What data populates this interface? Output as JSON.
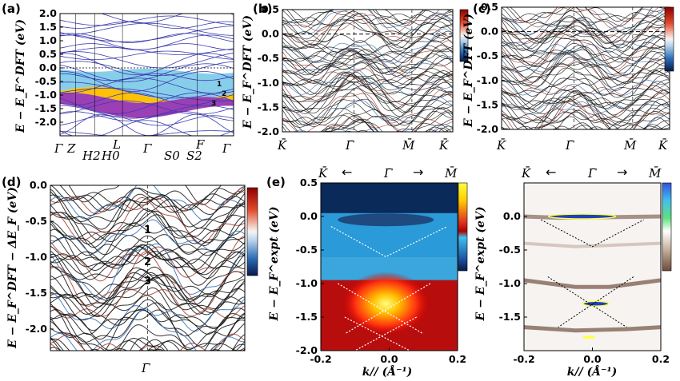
{
  "panel_labels": [
    "(a)",
    "(b)",
    "(c)",
    "(d)",
    "(e)"
  ],
  "axis_labels": {
    "dft": "E − E_F^DFT (eV)",
    "dft_shift": "E − E_F^DFT − ΔE_F (eV)",
    "expt": "E − E_F^expt (eV)",
    "k": "k// (Å⁻¹)"
  },
  "band_numbers": [
    "1",
    "2",
    "3"
  ],
  "k_points": {
    "a": [
      "Γ",
      "Z",
      "H2",
      "H0",
      "L",
      "Γ",
      "S0",
      "S2",
      "F",
      "Γ"
    ],
    "bc": [
      "K̄",
      "Γ̄",
      "M̄",
      "K̄"
    ],
    "d": [
      "Γ̄"
    ],
    "e": [
      "K̄",
      "Γ̄",
      "M̄"
    ]
  },
  "chart_data": [
    {
      "panel": "a",
      "type": "line",
      "ylabel": "E − E_F^DFT (eV)",
      "ylim": [
        -2.5,
        2.0
      ],
      "yticks": [
        "2.0",
        "1.5",
        "1.0",
        "0.5",
        "0.0",
        "-0.5",
        "-1.0",
        "-1.5",
        "-2.0"
      ],
      "xtick_labels": [
        "Γ",
        "Z",
        "H2|H0",
        "L",
        "Γ",
        "S0|S2",
        "F",
        "Γ"
      ],
      "shaded_bands": [
        {
          "name": "1",
          "color": "#87ceeb"
        },
        {
          "name": "2",
          "color": "#ffc107"
        },
        {
          "name": "3",
          "color": "#9b3fb5"
        }
      ]
    },
    {
      "panel": "b",
      "type": "line",
      "ylabel": "E − E_F^DFT (eV)",
      "ylim": [
        -2.0,
        0.5
      ],
      "yticks": [
        "0.5",
        "0.0",
        "-0.5",
        "-1.0",
        "-1.5",
        "-2.0"
      ],
      "xtick_labels": [
        "K̄",
        "Γ̄",
        "M̄",
        "K̄"
      ]
    },
    {
      "panel": "c",
      "type": "line",
      "ylabel": "E − E_F^DFT (eV)",
      "ylim": [
        -2.0,
        0.5
      ],
      "yticks": [
        "0.5",
        "0.0",
        "-0.5",
        "-1.0",
        "-1.5",
        "-2.0"
      ],
      "xtick_labels": [
        "K̄",
        "Γ̄",
        "M̄",
        "K̄"
      ]
    },
    {
      "panel": "d",
      "type": "line",
      "ylabel": "E − E_F^DFT − ΔE_F (eV)",
      "ylim": [
        -2.3,
        0.0
      ],
      "yticks": [
        "0.0",
        "-0.5",
        "-1.0",
        "-1.5",
        "-2.0"
      ],
      "xtick_labels": [
        "Γ̄"
      ]
    },
    {
      "panel": "e-left",
      "type": "heatmap",
      "ylabel": "E − E_F^expt (eV)",
      "xlabel": "k// (Å⁻¹)",
      "xlim": [
        -0.2,
        0.2
      ],
      "ylim": [
        -2.0,
        0.5
      ],
      "xticks": [
        "-0.2",
        "0.0",
        "0.2"
      ],
      "yticks": [
        "0.5",
        "0.0",
        "-0.5",
        "-1.0",
        "-1.5",
        "-2.0"
      ]
    },
    {
      "panel": "e-right",
      "type": "heatmap",
      "ylabel": "E − E_F^expt (eV)",
      "xlabel": "k// (Å⁻¹)",
      "xlim": [
        -0.2,
        0.2
      ],
      "ylim": [
        -2.0,
        0.5
      ],
      "xticks": [
        "-0.2",
        "0.0",
        "0.2"
      ],
      "yticks": [
        "0.0",
        "-0.5",
        "-1.0",
        "-1.5"
      ]
    }
  ]
}
